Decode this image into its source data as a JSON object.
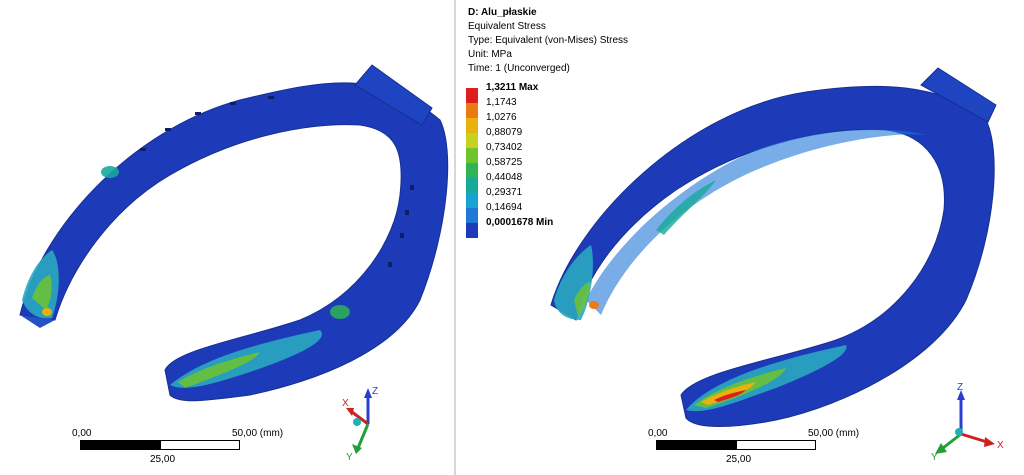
{
  "legend": {
    "title": "D: Alu_płaskie",
    "quantity": "Equivalent Stress",
    "type": "Type: Equivalent (von-Mises) Stress",
    "unit": "Unit: MPa",
    "time": "Time: 1 (Unconverged)",
    "levels": [
      {
        "label": "1,3211 Max",
        "color": "#e01d1d"
      },
      {
        "label": "1,1743",
        "color": "#ec7a12"
      },
      {
        "label": "1,0276",
        "color": "#e7b10e"
      },
      {
        "label": "0,88079",
        "color": "#c7d11f"
      },
      {
        "label": "0,73402",
        "color": "#6fc42e"
      },
      {
        "label": "0,58725",
        "color": "#2db553"
      },
      {
        "label": "0,44048",
        "color": "#18a99a"
      },
      {
        "label": "0,29371",
        "color": "#16a4d4"
      },
      {
        "label": "0,14694",
        "color": "#1f77d8"
      },
      {
        "label": "0,0001678 Min",
        "color": "#1d3bb8"
      }
    ]
  },
  "views": {
    "left": {
      "scale": {
        "start": "0,00",
        "end": "50,00 (mm)",
        "mid": "25,00"
      },
      "triad": {
        "z": "Z",
        "x": "X",
        "y": "Y"
      }
    },
    "right": {
      "scale": {
        "start": "0,00",
        "end": "50,00 (mm)",
        "mid": "25,00"
      },
      "triad": {
        "z": "Z",
        "x": "X",
        "y": "Y"
      }
    }
  }
}
